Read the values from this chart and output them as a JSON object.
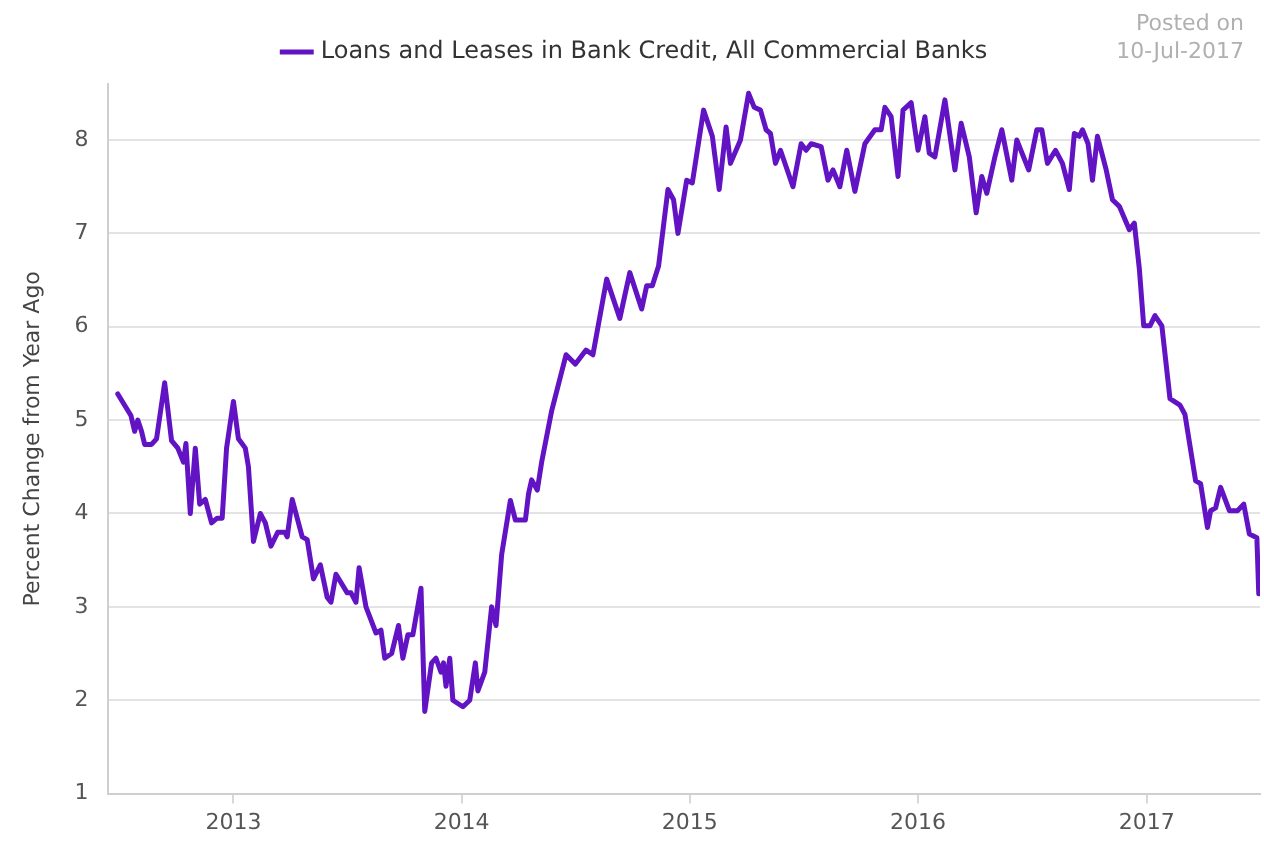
{
  "chart_data": {
    "type": "line",
    "ylabel": "Percent Change from Year Ago",
    "annotations": [
      "Posted on",
      "10-Jul-2017"
    ],
    "x": [
      "2012-06-30",
      "2012-07-21",
      "2012-07-27",
      "2012-08-01",
      "2012-08-07",
      "2012-08-12",
      "2012-08-23",
      "2012-08-31",
      "2012-09-13",
      "2012-09-24",
      "2012-10-04",
      "2012-10-13",
      "2012-10-17",
      "2012-10-24",
      "2012-11-01",
      "2012-11-08",
      "2012-11-17",
      "2012-11-27",
      "2012-12-06",
      "2012-12-14",
      "2012-12-21",
      "2013-01-01",
      "2013-01-09",
      "2013-01-20",
      "2013-01-25",
      "2013-02-02",
      "2013-02-13",
      "2013-02-21",
      "2013-03-02",
      "2013-03-13",
      "2013-03-24",
      "2013-03-28",
      "2013-04-05",
      "2013-04-21",
      "2013-04-29",
      "2013-05-09",
      "2013-05-20",
      "2013-05-31",
      "2013-06-06",
      "2013-06-14",
      "2013-07-02",
      "2013-07-08",
      "2013-07-16",
      "2013-07-21",
      "2013-08-01",
      "2013-08-17",
      "2013-08-25",
      "2013-08-31",
      "2013-09-11",
      "2013-09-22",
      "2013-09-29",
      "2013-10-07",
      "2013-10-15",
      "2013-10-28",
      "2013-11-03",
      "2013-11-14",
      "2013-11-21",
      "2013-11-29",
      "2013-12-03",
      "2013-12-07",
      "2013-12-13",
      "2013-12-18",
      "2014-01-03",
      "2014-01-14",
      "2014-01-23",
      "2014-01-27",
      "2014-02-07",
      "2014-02-18",
      "2014-02-25",
      "2014-03-06",
      "2014-03-20",
      "2014-03-28",
      "2014-04-13",
      "2014-04-18",
      "2014-04-23",
      "2014-05-02",
      "2014-05-09",
      "2014-05-25",
      "2014-06-17",
      "2014-07-02",
      "2014-07-19",
      "2014-07-30",
      "2014-08-21",
      "2014-09-11",
      "2014-09-27",
      "2014-10-16",
      "2014-10-24",
      "2014-11-02",
      "2014-11-12",
      "2014-11-27",
      "2014-12-06",
      "2014-12-13",
      "2014-12-27",
      "2015-01-05",
      "2015-01-23",
      "2015-02-06",
      "2015-02-17",
      "2015-02-28",
      "2015-03-07",
      "2015-03-23",
      "2015-04-05",
      "2015-04-14",
      "2015-04-24",
      "2015-05-03",
      "2015-05-10",
      "2015-05-18",
      "2015-05-26",
      "2015-06-15",
      "2015-06-28",
      "2015-07-06",
      "2015-07-14",
      "2015-07-30",
      "2015-08-10",
      "2015-08-18",
      "2015-08-29",
      "2015-09-09",
      "2015-09-22",
      "2015-10-08",
      "2015-10-24",
      "2015-11-03",
      "2015-11-09",
      "2015-11-19",
      "2015-11-30",
      "2015-12-08",
      "2015-12-21",
      "2016-01-01",
      "2016-01-12",
      "2016-01-19",
      "2016-01-28",
      "2016-02-13",
      "2016-02-29",
      "2016-03-10",
      "2016-03-23",
      "2016-04-03",
      "2016-04-12",
      "2016-04-20",
      "2016-05-03",
      "2016-05-14",
      "2016-05-30",
      "2016-06-07",
      "2016-06-26",
      "2016-07-09",
      "2016-07-17",
      "2016-07-26",
      "2016-08-08",
      "2016-08-19",
      "2016-08-30",
      "2016-09-07",
      "2016-09-15",
      "2016-09-20",
      "2016-09-29",
      "2016-10-06",
      "2016-10-14",
      "2016-10-28",
      "2016-11-07",
      "2016-11-18",
      "2016-12-04",
      "2016-12-12",
      "2016-12-20",
      "2016-12-27",
      "2017-01-06",
      "2017-01-14",
      "2017-01-25",
      "2017-02-07",
      "2017-02-23",
      "2017-03-03",
      "2017-03-20",
      "2017-03-28",
      "2017-04-08",
      "2017-04-13",
      "2017-04-21",
      "2017-04-29",
      "2017-05-13",
      "2017-05-26",
      "2017-06-05",
      "2017-06-14",
      "2017-06-26",
      "2017-06-29"
    ],
    "series": [
      {
        "name": "Loans and Leases in Bank Credit, All Commercial Banks",
        "color": "#6214c4",
        "values": [
          5.28,
          5.05,
          4.88,
          5.0,
          4.88,
          4.74,
          4.74,
          4.8,
          5.4,
          4.78,
          4.7,
          4.55,
          4.75,
          4.0,
          4.7,
          4.1,
          4.15,
          3.9,
          3.95,
          3.95,
          4.7,
          5.2,
          4.8,
          4.7,
          4.5,
          3.7,
          4.0,
          3.9,
          3.65,
          3.8,
          3.8,
          3.75,
          4.15,
          3.75,
          3.72,
          3.3,
          3.45,
          3.1,
          3.05,
          3.35,
          3.15,
          3.15,
          3.05,
          3.42,
          3.0,
          2.72,
          2.75,
          2.45,
          2.5,
          2.8,
          2.45,
          2.7,
          2.7,
          3.2,
          1.88,
          2.4,
          2.45,
          2.3,
          2.4,
          2.15,
          2.45,
          2.0,
          1.93,
          2.0,
          2.4,
          2.1,
          2.3,
          3.0,
          2.8,
          3.56,
          4.14,
          3.93,
          3.93,
          4.21,
          4.36,
          4.25,
          4.55,
          5.1,
          5.7,
          5.6,
          5.75,
          5.7,
          6.51,
          6.09,
          6.58,
          6.19,
          6.44,
          6.44,
          6.65,
          7.47,
          7.36,
          7.0,
          7.57,
          7.54,
          8.32,
          8.04,
          7.47,
          8.14,
          7.75,
          8.0,
          8.5,
          8.35,
          8.32,
          8.11,
          8.07,
          7.75,
          7.89,
          7.5,
          7.96,
          7.89,
          7.96,
          7.93,
          7.57,
          7.68,
          7.5,
          7.89,
          7.45,
          7.96,
          8.11,
          8.11,
          8.35,
          8.25,
          7.61,
          8.32,
          8.4,
          7.89,
          8.25,
          7.86,
          7.82,
          8.43,
          7.68,
          8.18,
          7.82,
          7.22,
          7.61,
          7.43,
          7.82,
          8.11,
          7.57,
          8.0,
          7.68,
          8.11,
          8.11,
          7.75,
          7.89,
          7.75,
          7.47,
          8.07,
          8.04,
          8.11,
          7.96,
          7.57,
          8.04,
          7.68,
          7.36,
          7.29,
          7.04,
          7.11,
          6.62,
          6.01,
          6.01,
          6.12,
          6.01,
          5.23,
          5.16,
          5.06,
          4.35,
          4.32,
          3.85,
          4.03,
          4.06,
          4.28,
          4.03,
          4.03,
          4.1,
          3.78,
          3.74,
          3.14
        ]
      }
    ],
    "xlim": [
      "2012-06-15",
      "2017-07-01"
    ],
    "xticks": [
      "2013",
      "2014",
      "2015",
      "2016",
      "2017"
    ],
    "ylim": [
      1,
      8.6
    ],
    "yticks": [
      1,
      2,
      3,
      4,
      5,
      6,
      7,
      8
    ],
    "grid": "y",
    "legend": "top",
    "marker": "none",
    "line_style": "solid"
  }
}
